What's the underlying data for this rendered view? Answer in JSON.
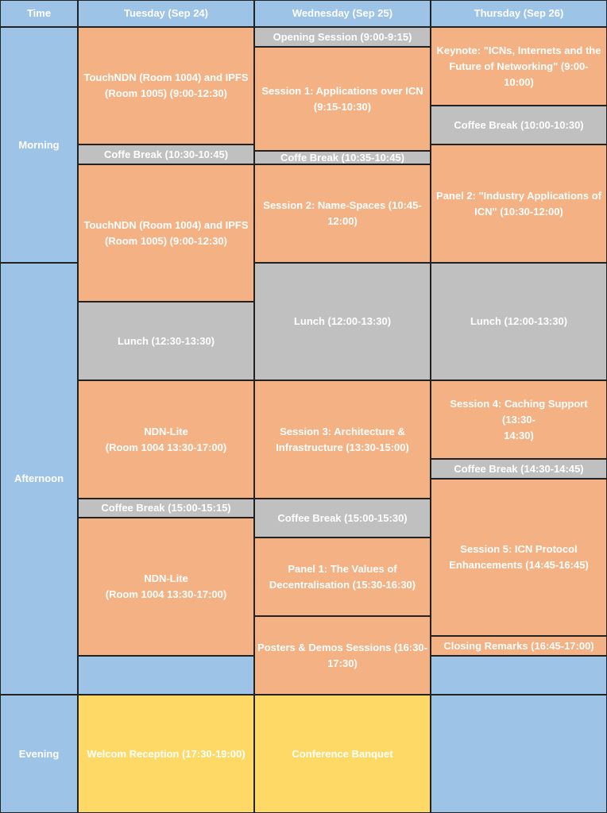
{
  "colors": {
    "header": "#9dc3e6",
    "time_label": "#9dc3e6",
    "session": "#f4b183",
    "break": "#c0c0c0",
    "social": "#ffd966",
    "empty": "#9dc3e6",
    "text": "#ffffff",
    "border": "#222222"
  },
  "header": {
    "time": "Time",
    "tuesday": "Tuesday (Sep 24)",
    "wednesday": "Wednesday (Sep 25)",
    "thursday": "Thursday (Sep 26)"
  },
  "periods": {
    "morning": "Morning",
    "afternoon": "Afternoon",
    "evening": "Evening"
  },
  "tuesday": {
    "s1": "TouchNDN (Room 1004) and IPFS\n(Room 1005)   (9:00-12:30)",
    "b1": "Coffe Break (10:30-10:45)",
    "s2": "TouchNDN (Room 1004) and IPFS\n(Room 1005)   (9:00-12:30)",
    "lunch": "Lunch (12:30-13:30)",
    "s3": "NDN-Lite\n(Room 1004 13:30-17:00)",
    "b2": "Coffee Break (15:00-15:15)",
    "s4": "NDN-Lite\n(Room 1004 13:30-17:00)",
    "evening": "Welcom Reception (17:30-19:00)"
  },
  "wednesday": {
    "opening": "Opening Session (9:00-9:15)",
    "s1": "Session 1: Applications over ICN\n(9:15-10:30)",
    "b1": "Coffe Break (10:35-10:45)",
    "s2": "Session 2: Name-Spaces (10:45-\n12:00)",
    "lunch": "Lunch (12:00-13:30)",
    "s3": "Session 3: Architecture &\nInfrastructure (13:30-15:00)",
    "b2": "Coffee Break (15:00-15:30)",
    "p1": "Panel 1: The Values of\nDecentralisation (15:30-16:30)",
    "posters": "Posters & Demos Sessions (16:30-\n17:30)",
    "evening": "Conference Banquet"
  },
  "thursday": {
    "keynote": "Keynote: \"ICNs, Internets and the\nFuture of Networking\" (9:00-\n10:00)",
    "b1": "Coffee Break (10:00-10:30)",
    "p2": "Panel 2: \"Industry Applications of\nICN\" (10:30-12:00)",
    "lunch": "Lunch (12:00-13:30)",
    "s4": "Session 4: Caching Support (13:30-\n14:30)",
    "b2": "Coffee Break (14:30-14:45)",
    "s5": "Session 5: ICN Protocol\nEnhancements (14:45-16:45)",
    "closing": "Closing Remarks (16:45-17:00)"
  }
}
